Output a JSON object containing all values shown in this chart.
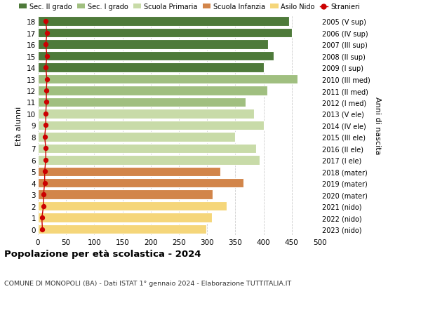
{
  "ages": [
    0,
    1,
    2,
    3,
    4,
    5,
    6,
    7,
    8,
    9,
    10,
    11,
    12,
    13,
    14,
    15,
    16,
    17,
    18
  ],
  "years": [
    "2023 (nido)",
    "2022 (nido)",
    "2021 (nido)",
    "2020 (mater)",
    "2019 (mater)",
    "2018 (mater)",
    "2017 (I ele)",
    "2016 (II ele)",
    "2015 (III ele)",
    "2014 (IV ele)",
    "2013 (V ele)",
    "2012 (I med)",
    "2011 (II med)",
    "2010 (III med)",
    "2009 (I sup)",
    "2008 (II sup)",
    "2007 (III sup)",
    "2006 (IV sup)",
    "2005 (V sup)"
  ],
  "values": [
    298,
    308,
    335,
    310,
    365,
    323,
    393,
    387,
    350,
    400,
    383,
    368,
    407,
    460,
    400,
    418,
    408,
    450,
    445
  ],
  "stranieri": [
    8,
    7,
    10,
    10,
    12,
    12,
    14,
    14,
    12,
    14,
    14,
    15,
    15,
    16,
    14,
    16,
    14,
    16,
    14
  ],
  "bar_colors": [
    "#f5d67a",
    "#f5d67a",
    "#f5d67a",
    "#d2854a",
    "#d2854a",
    "#d2854a",
    "#c8dba8",
    "#c8dba8",
    "#c8dba8",
    "#c8dba8",
    "#c8dba8",
    "#a0bf80",
    "#a0bf80",
    "#a0bf80",
    "#4e7a3a",
    "#4e7a3a",
    "#4e7a3a",
    "#4e7a3a",
    "#4e7a3a"
  ],
  "legend_colors": [
    "#4e7a3a",
    "#a0bf80",
    "#c8dba8",
    "#d2854a",
    "#f5d67a",
    "#cc0000"
  ],
  "legend_labels": [
    "Sec. II grado",
    "Sec. I grado",
    "Scuola Primaria",
    "Scuola Infanzia",
    "Asilo Nido",
    "Stranieri"
  ],
  "title": "Popolazione per età scolastica - 2024",
  "subtitle": "COMUNE DI MONOPOLI (BA) - Dati ISTAT 1° gennaio 2024 - Elaborazione TUTTITALIA.IT",
  "ylabel_left": "Età alunni",
  "ylabel_right": "Anni di nascita",
  "xlim": [
    0,
    500
  ],
  "xticks": [
    0,
    50,
    100,
    150,
    200,
    250,
    300,
    350,
    400,
    450,
    500
  ],
  "background_color": "#ffffff",
  "grid_color": "#cccccc"
}
